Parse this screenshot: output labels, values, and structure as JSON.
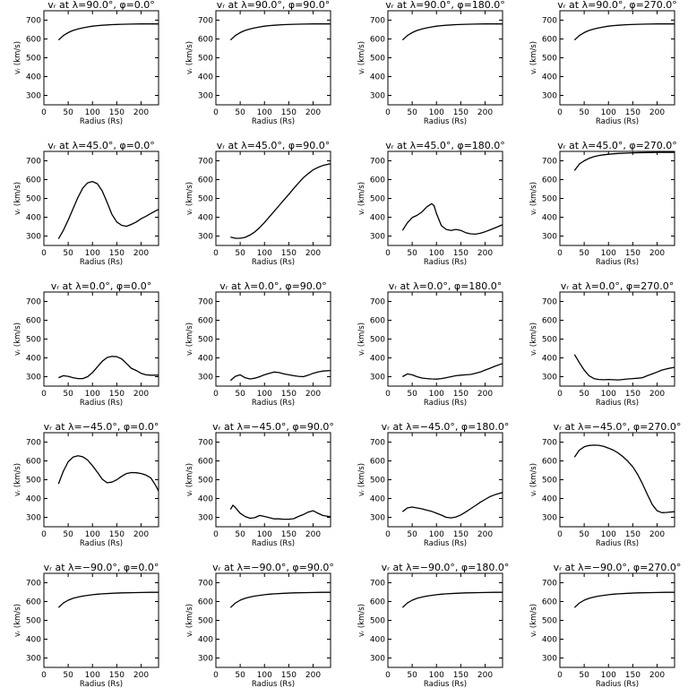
{
  "chart_data": {
    "type": "line",
    "layout": "grid 5 rows x 4 columns",
    "xlabel": "Radius (Rs)",
    "ylabel": "vᵣ (km/s)",
    "xlim": [
      0,
      236
    ],
    "ylim": [
      250,
      750
    ],
    "xticks": [
      "0",
      "50",
      "100",
      "150",
      "200"
    ],
    "yticks": [
      "300",
      "400",
      "500",
      "600",
      "700"
    ],
    "grid": false,
    "panels": [
      {
        "title": "vᵣ at λ=90.0°, φ=0.0°",
        "x": [
          30,
          40,
          50,
          60,
          70,
          80,
          90,
          100,
          110,
          120,
          140,
          160,
          180,
          200,
          220,
          236
        ],
        "values": [
          595,
          618,
          634,
          645,
          653,
          659,
          664,
          668,
          671,
          673,
          676,
          678,
          679,
          680,
          680,
          680
        ]
      },
      {
        "title": "vᵣ at λ=90.0°, φ=90.0°",
        "x": [
          30,
          40,
          50,
          60,
          70,
          80,
          90,
          100,
          110,
          120,
          140,
          160,
          180,
          200,
          220,
          236
        ],
        "values": [
          595,
          618,
          634,
          645,
          653,
          659,
          664,
          668,
          671,
          673,
          676,
          678,
          679,
          680,
          680,
          680
        ]
      },
      {
        "title": "vᵣ at λ=90.0°, φ=180.0°",
        "x": [
          30,
          40,
          50,
          60,
          70,
          80,
          90,
          100,
          110,
          120,
          140,
          160,
          180,
          200,
          220,
          236
        ],
        "values": [
          595,
          618,
          634,
          645,
          653,
          659,
          664,
          668,
          671,
          673,
          676,
          678,
          679,
          680,
          680,
          680
        ]
      },
      {
        "title": "vᵣ at λ=90.0°, φ=270.0°",
        "x": [
          30,
          40,
          50,
          60,
          70,
          80,
          90,
          100,
          110,
          120,
          140,
          160,
          180,
          200,
          220,
          236
        ],
        "values": [
          595,
          618,
          634,
          645,
          653,
          659,
          664,
          668,
          671,
          673,
          676,
          678,
          679,
          680,
          680,
          680
        ]
      },
      {
        "title": "vᵣ at λ=45.0°, φ=0.0°",
        "x": [
          30,
          40,
          50,
          60,
          70,
          80,
          90,
          100,
          110,
          120,
          130,
          140,
          150,
          160,
          170,
          180,
          190,
          200,
          210,
          220,
          236
        ],
        "values": [
          285,
          330,
          385,
          445,
          505,
          555,
          583,
          590,
          578,
          540,
          480,
          415,
          375,
          357,
          352,
          362,
          375,
          392,
          405,
          420,
          442
        ]
      },
      {
        "title": "vᵣ at λ=45.0°, φ=90.0°",
        "x": [
          30,
          40,
          50,
          60,
          70,
          80,
          90,
          100,
          110,
          120,
          130,
          140,
          150,
          160,
          170,
          180,
          190,
          200,
          210,
          220,
          236
        ],
        "values": [
          295,
          288,
          288,
          293,
          305,
          322,
          345,
          372,
          402,
          432,
          462,
          492,
          522,
          553,
          582,
          610,
          632,
          652,
          665,
          675,
          685
        ]
      },
      {
        "title": "vᵣ at λ=45.0°, φ=180.0°",
        "x": [
          30,
          40,
          50,
          60,
          70,
          80,
          90,
          95,
          100,
          110,
          120,
          130,
          140,
          150,
          160,
          170,
          180,
          190,
          200,
          210,
          220,
          236
        ],
        "values": [
          330,
          370,
          398,
          410,
          428,
          455,
          472,
          462,
          420,
          355,
          335,
          330,
          335,
          330,
          318,
          312,
          310,
          315,
          323,
          333,
          343,
          360
        ]
      },
      {
        "title": "vᵣ at λ=45.0°, φ=270.0°",
        "x": [
          30,
          40,
          50,
          60,
          70,
          80,
          90,
          100,
          110,
          120,
          140,
          160,
          180,
          200,
          220,
          236
        ],
        "values": [
          648,
          683,
          700,
          713,
          722,
          728,
          732,
          735,
          737,
          739,
          741,
          743,
          744,
          745,
          745,
          745
        ]
      },
      {
        "title": "vᵣ at λ=0.0°, φ=0.0°",
        "x": [
          30,
          40,
          50,
          60,
          70,
          80,
          90,
          100,
          110,
          120,
          130,
          140,
          150,
          160,
          170,
          180,
          190,
          200,
          210,
          220,
          236
        ],
        "values": [
          295,
          305,
          302,
          295,
          290,
          290,
          300,
          322,
          352,
          382,
          402,
          408,
          406,
          395,
          370,
          345,
          333,
          318,
          310,
          308,
          308
        ]
      },
      {
        "title": "vᵣ at λ=0.0°, φ=90.0°",
        "x": [
          30,
          40,
          50,
          60,
          70,
          80,
          90,
          100,
          110,
          120,
          130,
          140,
          150,
          160,
          170,
          180,
          190,
          200,
          210,
          220,
          236
        ],
        "values": [
          280,
          302,
          310,
          295,
          288,
          292,
          300,
          310,
          318,
          325,
          322,
          315,
          310,
          305,
          302,
          300,
          308,
          318,
          325,
          330,
          333
        ]
      },
      {
        "title": "vᵣ at λ=0.0°, φ=180.0°",
        "x": [
          30,
          40,
          50,
          60,
          70,
          80,
          90,
          100,
          110,
          120,
          130,
          140,
          150,
          160,
          170,
          180,
          190,
          200,
          210,
          220,
          236
        ],
        "values": [
          300,
          315,
          310,
          300,
          293,
          290,
          288,
          287,
          290,
          295,
          300,
          305,
          308,
          310,
          312,
          318,
          325,
          335,
          345,
          355,
          370
        ]
      },
      {
        "title": "vᵣ at λ=0.0°, φ=270.0°",
        "x": [
          30,
          40,
          50,
          60,
          70,
          80,
          90,
          100,
          110,
          120,
          130,
          140,
          150,
          160,
          170,
          180,
          190,
          200,
          210,
          220,
          236
        ],
        "values": [
          418,
          375,
          335,
          305,
          290,
          285,
          284,
          285,
          284,
          283,
          285,
          288,
          290,
          292,
          295,
          305,
          315,
          325,
          335,
          342,
          350
        ]
      },
      {
        "title": "vᵣ at λ=−45.0°, φ=0.0°",
        "x": [
          30,
          40,
          50,
          60,
          70,
          80,
          90,
          100,
          110,
          120,
          130,
          140,
          150,
          160,
          170,
          180,
          190,
          200,
          210,
          220,
          230,
          236
        ],
        "values": [
          478,
          545,
          595,
          620,
          627,
          622,
          605,
          575,
          540,
          503,
          484,
          487,
          500,
          518,
          533,
          538,
          537,
          533,
          525,
          510,
          470,
          440
        ]
      },
      {
        "title": "vᵣ at λ=−45.0°, φ=90.0°",
        "x": [
          30,
          35,
          40,
          50,
          60,
          70,
          80,
          90,
          100,
          110,
          120,
          130,
          140,
          150,
          160,
          170,
          180,
          190,
          200,
          210,
          220,
          236
        ],
        "values": [
          342,
          365,
          352,
          322,
          305,
          295,
          298,
          310,
          305,
          298,
          292,
          292,
          290,
          290,
          293,
          305,
          315,
          328,
          335,
          322,
          310,
          303
        ]
      },
      {
        "title": "vᵣ at λ=−45.0°, φ=180.0°",
        "x": [
          30,
          40,
          50,
          60,
          70,
          80,
          90,
          100,
          110,
          120,
          130,
          140,
          150,
          160,
          170,
          180,
          190,
          200,
          210,
          220,
          236
        ],
        "values": [
          330,
          350,
          355,
          350,
          345,
          338,
          332,
          322,
          312,
          300,
          297,
          302,
          313,
          328,
          345,
          362,
          380,
          395,
          410,
          420,
          432
        ]
      },
      {
        "title": "vᵣ at λ=−45.0°, φ=270.0°",
        "x": [
          30,
          40,
          50,
          60,
          70,
          80,
          90,
          100,
          110,
          120,
          130,
          140,
          150,
          160,
          170,
          180,
          190,
          200,
          210,
          220,
          236
        ],
        "values": [
          620,
          657,
          675,
          682,
          684,
          683,
          677,
          668,
          657,
          642,
          622,
          598,
          568,
          528,
          478,
          422,
          368,
          335,
          325,
          326,
          330
        ]
      },
      {
        "title": "vᵣ at λ=−90.0°, φ=0.0°",
        "x": [
          30,
          40,
          50,
          60,
          70,
          80,
          90,
          100,
          110,
          120,
          140,
          160,
          180,
          200,
          220,
          236
        ],
        "values": [
          568,
          592,
          607,
          617,
          624,
          629,
          633,
          636,
          639,
          641,
          644,
          646,
          647,
          648,
          649,
          649
        ]
      },
      {
        "title": "vᵣ at λ=−90.0°, φ=90.0°",
        "x": [
          30,
          40,
          50,
          60,
          70,
          80,
          90,
          100,
          110,
          120,
          140,
          160,
          180,
          200,
          220,
          236
        ],
        "values": [
          568,
          592,
          607,
          617,
          624,
          629,
          633,
          636,
          639,
          641,
          644,
          646,
          647,
          648,
          649,
          649
        ]
      },
      {
        "title": "vᵣ at λ=−90.0°, φ=180.0°",
        "x": [
          30,
          40,
          50,
          60,
          70,
          80,
          90,
          100,
          110,
          120,
          140,
          160,
          180,
          200,
          220,
          236
        ],
        "values": [
          568,
          592,
          607,
          617,
          624,
          629,
          633,
          636,
          639,
          641,
          644,
          646,
          647,
          648,
          649,
          649
        ]
      },
      {
        "title": "vᵣ at λ=−90.0°, φ=270.0°",
        "x": [
          30,
          40,
          50,
          60,
          70,
          80,
          90,
          100,
          110,
          120,
          140,
          160,
          180,
          200,
          220,
          236
        ],
        "values": [
          568,
          592,
          607,
          617,
          624,
          629,
          633,
          636,
          639,
          641,
          644,
          646,
          647,
          648,
          649,
          649
        ]
      }
    ]
  }
}
